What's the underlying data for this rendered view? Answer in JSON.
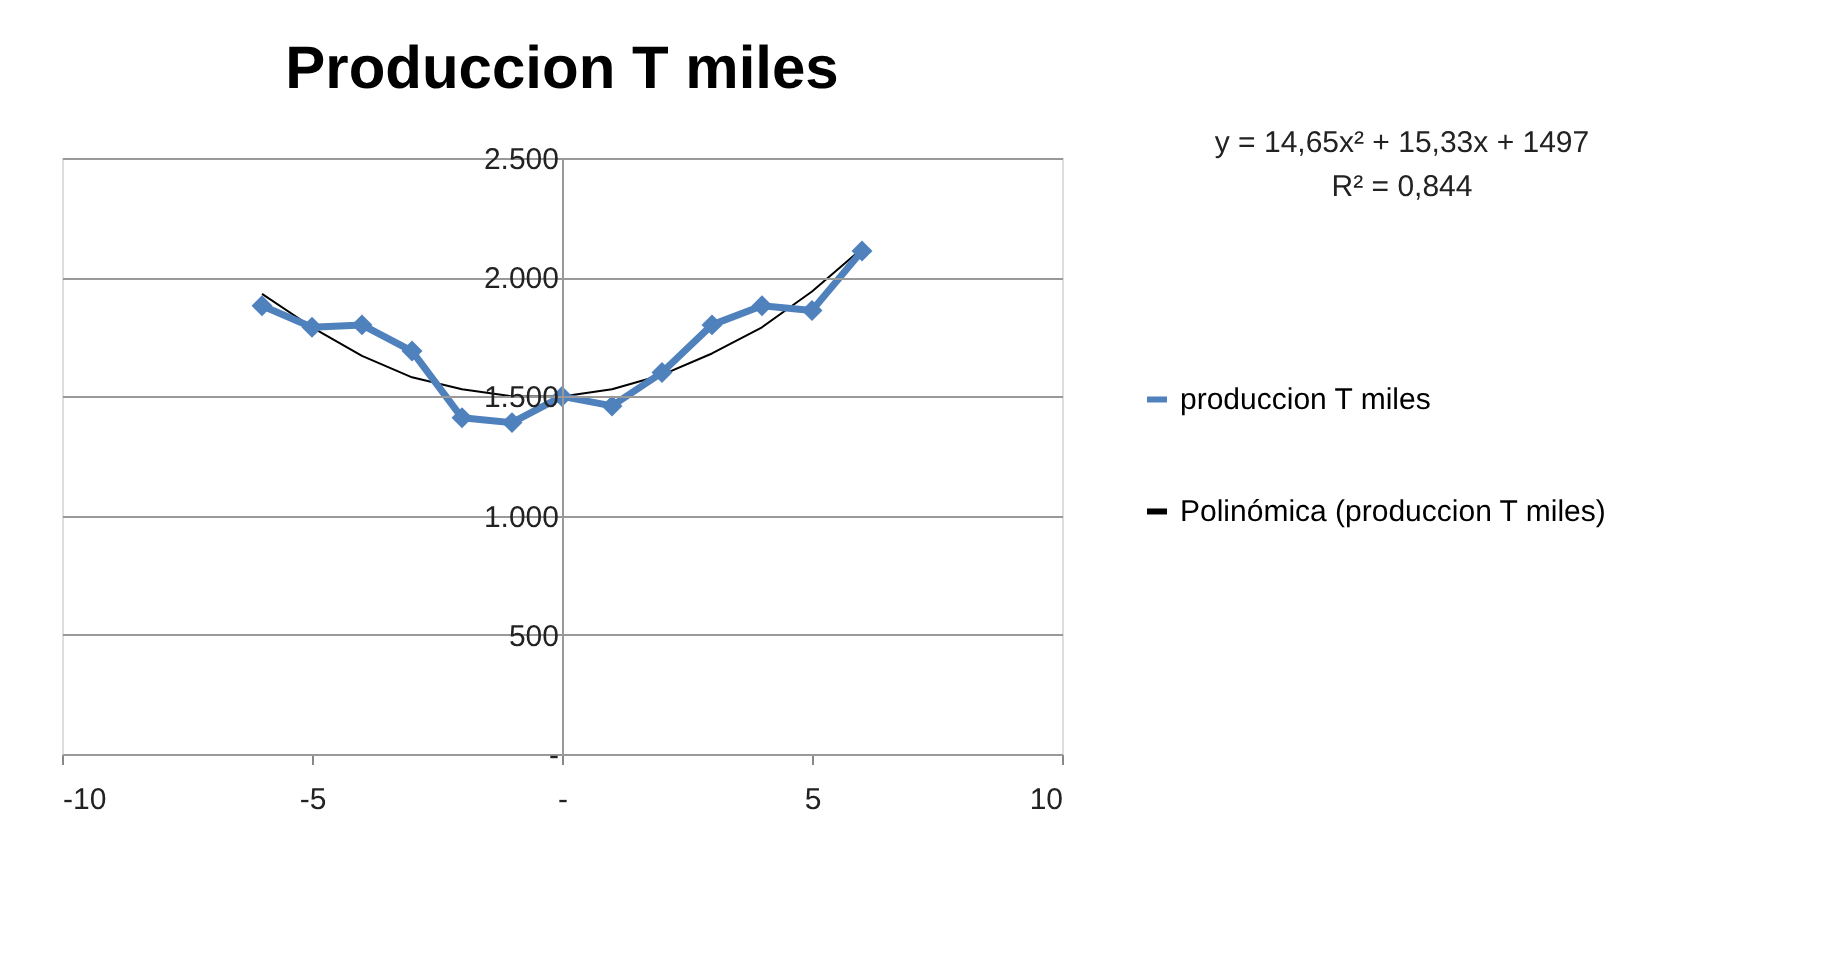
{
  "chart_data": {
    "type": "line",
    "title": "Produccion T miles",
    "x": [
      -6,
      -5,
      -4,
      -3,
      -2,
      -1,
      0,
      1,
      2,
      3,
      4,
      5,
      6
    ],
    "series": [
      {
        "name": "produccion T miles",
        "color": "#4f81bd",
        "marker": "diamond",
        "line_style": "solid",
        "values": [
          1880,
          1790,
          1800,
          1690,
          1410,
          1390,
          1500,
          1460,
          1600,
          1800,
          1880,
          1860,
          2110
        ]
      },
      {
        "name": "Polinómica (produccion T miles)",
        "color": "#000000",
        "marker": "none",
        "line_style": "solid",
        "values": [
          1930,
          1790,
          1670,
          1580,
          1530,
          1500,
          1500,
          1530,
          1590,
          1680,
          1790,
          1940,
          2120
        ]
      }
    ],
    "xlim": [
      -10,
      10
    ],
    "xticks": [
      -10,
      -5,
      {
        "value": 0,
        "label": "-"
      },
      5,
      10
    ],
    "ylim": [
      0,
      2500
    ],
    "yticks": [
      {
        "value": 0,
        "label": "-"
      },
      500,
      {
        "value": 1000,
        "label": "1.000"
      },
      {
        "value": 1500,
        "label": "1.500"
      },
      {
        "value": 2000,
        "label": "2.000"
      },
      {
        "value": 2500,
        "label": "2.500"
      }
    ],
    "grid": "y",
    "legend": "right",
    "annotations": [
      "y = 14,65x² + 15,33x + 1497",
      "R² = 0,844"
    ]
  }
}
